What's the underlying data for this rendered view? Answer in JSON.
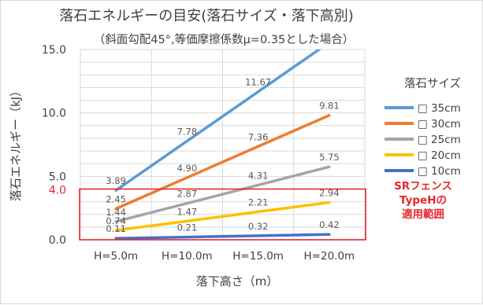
{
  "chart_data": {
    "type": "line",
    "title": "落石エネルギーの目安(落石サイズ・落下高別)",
    "subtitle": "（斜面勾配45°,等価摩擦係数μ=0.35とした場合）",
    "xlabel": "落下高さ（m）",
    "ylabel": "落石エネルギー（kJ）",
    "categories": [
      "H=5.0m",
      "H=10.0m",
      "H=15.0m",
      "H=20.0m"
    ],
    "ylim": [
      0,
      15
    ],
    "yticks": [
      "0.0",
      "5.0",
      "10.0",
      "15.0"
    ],
    "grid": "horizontal-and-vertical",
    "legend_title": "落石サイズ",
    "legend_position": "right",
    "series": [
      {
        "name": "□ 35cm",
        "color": "#5b9bd5",
        "values": [
          3.89,
          7.78,
          11.67,
          15.56
        ],
        "labels": [
          "3.89",
          "7.78",
          "11.67",
          ""
        ]
      },
      {
        "name": "□ 30cm",
        "color": "#ed7d31",
        "values": [
          2.45,
          4.9,
          7.36,
          9.81
        ],
        "labels": [
          "2.45",
          "4.90",
          "7.36",
          "9.81"
        ]
      },
      {
        "name": "□ 25cm",
        "color": "#a5a5a5",
        "values": [
          1.44,
          2.87,
          4.31,
          5.75
        ],
        "labels": [
          "1.44",
          "2.87",
          "4.31",
          "5.75"
        ]
      },
      {
        "name": "□ 20cm",
        "color": "#ffc000",
        "values": [
          0.74,
          1.47,
          2.21,
          2.94
        ],
        "labels": [
          "0.74",
          "1.47",
          "2.21",
          "2.94"
        ]
      },
      {
        "name": "□ 10cm",
        "color": "#4472c4",
        "values": [
          0.11,
          0.21,
          0.32,
          0.42
        ],
        "labels": [
          "0.11",
          "0.21",
          "0.32",
          "0.42"
        ]
      }
    ],
    "threshold": {
      "value": 4.0,
      "label": "4.0",
      "color": "#e8262c"
    },
    "annotation": [
      "SRフェンス",
      "TypeHの",
      "適用範囲"
    ]
  }
}
